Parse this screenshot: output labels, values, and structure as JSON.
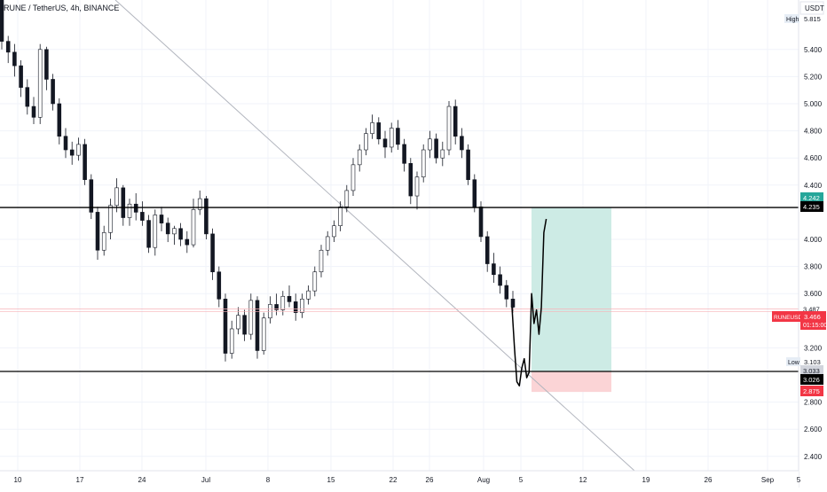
{
  "header": {
    "symbol_title": "RUNE / TetherUS, 4h, BINANCE",
    "currency": "USDT"
  },
  "colors": {
    "up": "#26a69a",
    "down": "#ef5350",
    "candle": "#131722",
    "grid": "#f0f3fa",
    "level_line": "#000000",
    "projection": "#000000",
    "profit_zone": "#cdebe5",
    "loss_zone": "#fbd4d6",
    "trend_line": "#b2b5be",
    "price_tag": "#f23645",
    "profit_tag": "#26a69a"
  },
  "chart_data": {
    "type": "candlestick",
    "title": "RUNE / TetherUS, 4h, BINANCE",
    "ylabel": "USDT",
    "ylim": [
      2.3,
      5.9
    ],
    "y_ticks": [
      "5.400",
      "5.200",
      "5.000",
      "4.800",
      "4.600",
      "4.400",
      "4.000",
      "3.800",
      "3.600",
      "3.200",
      "2.800",
      "2.600",
      "2.400"
    ],
    "x_ticks": [
      "10",
      "17",
      "24",
      "Jul",
      "8",
      "15",
      "22",
      "26",
      "Aug",
      "5",
      "12",
      "19",
      "26",
      "Sep",
      "5"
    ],
    "grid": true,
    "candles_ohlc": [
      [
        5.85,
        5.9,
        5.4,
        5.46
      ],
      [
        5.46,
        5.5,
        5.3,
        5.38
      ],
      [
        5.38,
        5.44,
        5.2,
        5.28
      ],
      [
        5.28,
        5.32,
        5.05,
        5.12
      ],
      [
        5.12,
        5.18,
        4.92,
        4.98
      ],
      [
        4.98,
        5.05,
        4.85,
        4.9
      ],
      [
        4.9,
        5.44,
        4.85,
        5.4
      ],
      [
        5.4,
        5.42,
        5.1,
        5.18
      ],
      [
        5.18,
        5.22,
        4.95,
        5.0
      ],
      [
        5.0,
        5.04,
        4.7,
        4.76
      ],
      [
        4.76,
        4.82,
        4.6,
        4.66
      ],
      [
        4.66,
        4.72,
        4.55,
        4.62
      ],
      [
        4.62,
        4.75,
        4.58,
        4.7
      ],
      [
        4.7,
        4.74,
        4.4,
        4.44
      ],
      [
        4.44,
        4.48,
        4.15,
        4.2
      ],
      [
        4.2,
        4.24,
        3.85,
        3.92
      ],
      [
        3.92,
        4.1,
        3.88,
        4.05
      ],
      [
        4.05,
        4.3,
        4.0,
        4.25
      ],
      [
        4.25,
        4.45,
        4.2,
        4.38
      ],
      [
        4.38,
        4.4,
        4.1,
        4.16
      ],
      [
        4.16,
        4.3,
        4.1,
        4.26
      ],
      [
        4.26,
        4.34,
        4.14,
        4.2
      ],
      [
        4.2,
        4.28,
        4.1,
        4.14
      ],
      [
        4.14,
        4.18,
        3.9,
        3.94
      ],
      [
        3.94,
        4.22,
        3.88,
        4.18
      ],
      [
        4.18,
        4.24,
        4.06,
        4.12
      ],
      [
        4.12,
        4.16,
        3.98,
        4.04
      ],
      [
        4.04,
        4.1,
        3.96,
        4.08
      ],
      [
        4.08,
        4.12,
        3.95,
        4.0
      ],
      [
        4.0,
        4.06,
        3.9,
        3.96
      ],
      [
        3.96,
        4.3,
        3.94,
        4.22
      ],
      [
        4.22,
        4.36,
        4.18,
        4.3
      ],
      [
        4.3,
        4.32,
        4.0,
        4.04
      ],
      [
        4.04,
        4.08,
        3.7,
        3.76
      ],
      [
        3.76,
        3.8,
        3.5,
        3.56
      ],
      [
        3.56,
        3.6,
        3.1,
        3.16
      ],
      [
        3.16,
        3.4,
        3.12,
        3.34
      ],
      [
        3.34,
        3.5,
        3.3,
        3.44
      ],
      [
        3.44,
        3.48,
        3.25,
        3.3
      ],
      [
        3.3,
        3.6,
        3.26,
        3.55
      ],
      [
        3.55,
        3.58,
        3.12,
        3.18
      ],
      [
        3.18,
        3.46,
        3.15,
        3.42
      ],
      [
        3.42,
        3.58,
        3.38,
        3.52
      ],
      [
        3.52,
        3.6,
        3.44,
        3.48
      ],
      [
        3.48,
        3.62,
        3.44,
        3.58
      ],
      [
        3.58,
        3.66,
        3.5,
        3.54
      ],
      [
        3.54,
        3.6,
        3.4,
        3.46
      ],
      [
        3.46,
        3.6,
        3.42,
        3.56
      ],
      [
        3.56,
        3.66,
        3.52,
        3.62
      ],
      [
        3.62,
        3.8,
        3.58,
        3.76
      ],
      [
        3.76,
        3.96,
        3.72,
        3.92
      ],
      [
        3.92,
        4.06,
        3.88,
        4.02
      ],
      [
        4.02,
        4.14,
        3.98,
        4.1
      ],
      [
        4.1,
        4.28,
        4.06,
        4.24
      ],
      [
        4.24,
        4.4,
        4.2,
        4.36
      ],
      [
        4.36,
        4.6,
        4.32,
        4.55
      ],
      [
        4.55,
        4.7,
        4.5,
        4.66
      ],
      [
        4.66,
        4.82,
        4.62,
        4.78
      ],
      [
        4.78,
        4.92,
        4.74,
        4.86
      ],
      [
        4.86,
        4.9,
        4.7,
        4.74
      ],
      [
        4.74,
        4.8,
        4.6,
        4.68
      ],
      [
        4.68,
        4.86,
        4.64,
        4.82
      ],
      [
        4.82,
        4.88,
        4.66,
        4.7
      ],
      [
        4.7,
        4.74,
        4.5,
        4.56
      ],
      [
        4.56,
        4.6,
        4.26,
        4.32
      ],
      [
        4.32,
        4.5,
        4.22,
        4.46
      ],
      [
        4.46,
        4.7,
        4.42,
        4.66
      ],
      [
        4.66,
        4.8,
        4.6,
        4.74
      ],
      [
        4.74,
        4.78,
        4.56,
        4.6
      ],
      [
        4.6,
        4.72,
        4.54,
        4.66
      ],
      [
        4.66,
        5.02,
        4.62,
        4.98
      ],
      [
        4.98,
        5.03,
        4.7,
        4.76
      ],
      [
        4.76,
        4.82,
        4.6,
        4.66
      ],
      [
        4.66,
        4.7,
        4.4,
        4.44
      ],
      [
        4.44,
        4.48,
        4.2,
        4.24
      ],
      [
        4.24,
        4.28,
        3.98,
        4.02
      ],
      [
        4.02,
        4.06,
        3.76,
        3.82
      ],
      [
        3.82,
        3.9,
        3.68,
        3.74
      ],
      [
        3.74,
        3.8,
        3.6,
        3.66
      ],
      [
        3.66,
        3.7,
        3.5,
        3.56
      ],
      [
        3.56,
        3.62,
        3.46,
        3.5
      ]
    ],
    "levels": [
      {
        "price": 4.235,
        "label": "4.235"
      },
      {
        "price": 3.026,
        "label": "3.026"
      }
    ],
    "trend_line": {
      "from": [
        "start",
        5.9
      ],
      "to": [
        "Sep",
        2.3
      ]
    },
    "projection_path": [
      [
        0,
        3.5
      ],
      [
        0.6,
        3.2
      ],
      [
        1.2,
        2.95
      ],
      [
        1.8,
        2.92
      ],
      [
        2.4,
        3.05
      ],
      [
        3.0,
        3.12
      ],
      [
        3.6,
        2.98
      ],
      [
        4.2,
        3.02
      ],
      [
        4.8,
        3.6
      ],
      [
        5.4,
        3.38
      ],
      [
        6.0,
        3.48
      ],
      [
        6.6,
        3.3
      ],
      [
        7.2,
        3.5
      ],
      [
        7.8,
        4.05
      ],
      [
        8.4,
        4.15
      ]
    ],
    "position": {
      "entry": 3.026,
      "target": 4.235,
      "stop": 2.875
    },
    "price_labels": {
      "high": {
        "label": "High",
        "value": "5.815"
      },
      "low": {
        "label": "Low",
        "value": "3.103"
      },
      "target_value": "4.242",
      "level_upper": "4.235",
      "current_symbol": "RUNEUSDT",
      "current_value": "3.466",
      "countdown": "01:15:00",
      "current_alt": "3.487",
      "lower_value": "3.033",
      "level_lower": "3.026",
      "stop_value": "2.875"
    }
  }
}
